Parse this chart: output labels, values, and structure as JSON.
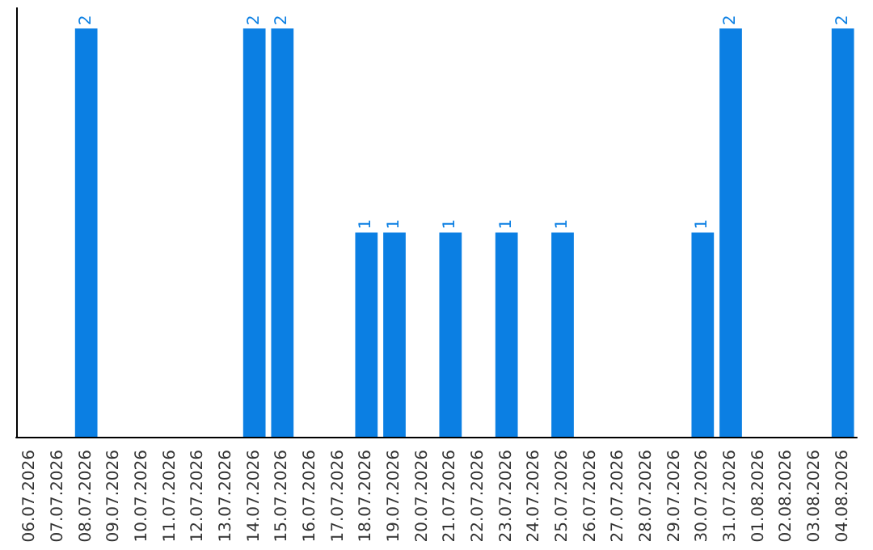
{
  "chart_data": {
    "type": "bar",
    "categories": [
      "06.07.2026",
      "07.07.2026",
      "08.07.2026",
      "09.07.2026",
      "10.07.2026",
      "11.07.2026",
      "12.07.2026",
      "13.07.2026",
      "14.07.2026",
      "15.07.2026",
      "16.07.2026",
      "17.07.2026",
      "18.07.2026",
      "19.07.2026",
      "20.07.2026",
      "21.07.2026",
      "22.07.2026",
      "23.07.2026",
      "24.07.2026",
      "25.07.2026",
      "26.07.2026",
      "27.07.2026",
      "28.07.2026",
      "29.07.2026",
      "30.07.2026",
      "31.07.2026",
      "01.08.2026",
      "02.08.2026",
      "03.08.2026",
      "04.08.2026"
    ],
    "values": [
      0,
      0,
      2,
      0,
      0,
      0,
      0,
      0,
      2,
      2,
      0,
      0,
      1,
      1,
      0,
      1,
      0,
      1,
      0,
      1,
      0,
      0,
      0,
      0,
      1,
      2,
      0,
      0,
      0,
      2
    ],
    "color": "#0b7fe3",
    "ylim": [
      0,
      2.1
    ],
    "tick_labels": "x",
    "value_labels": [
      null,
      null,
      "2",
      null,
      null,
      null,
      null,
      null,
      "2",
      "2",
      null,
      null,
      "1",
      "1",
      null,
      "1",
      null,
      "1",
      null,
      "1",
      null,
      null,
      null,
      null,
      "1",
      "2",
      null,
      null,
      null,
      "2"
    ],
    "grid": false
  }
}
